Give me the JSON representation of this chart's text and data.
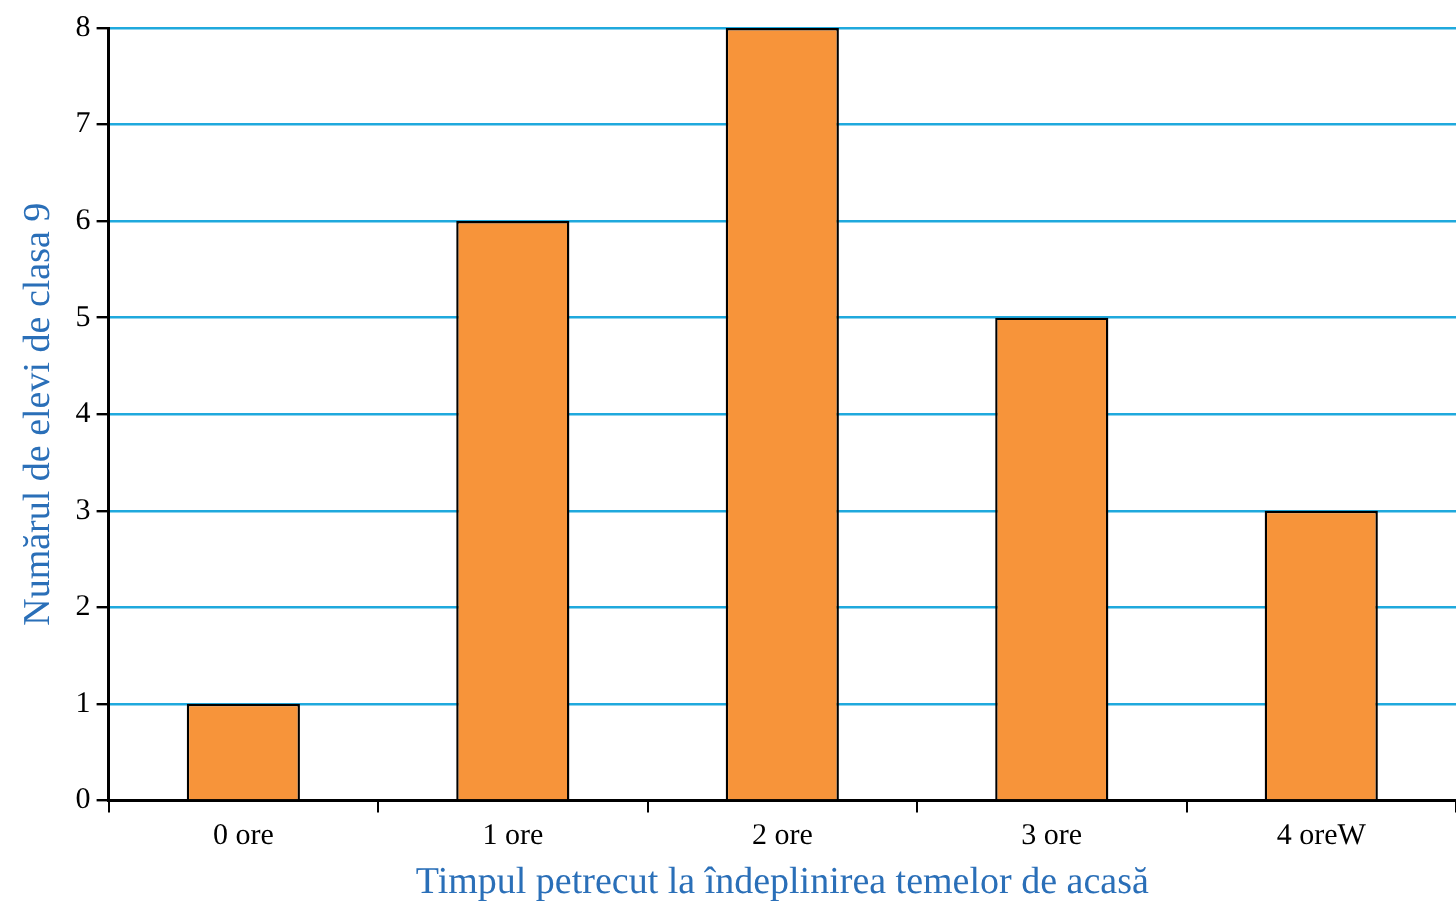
{
  "chart_data": {
    "type": "bar",
    "xlabel": "Timpul petrecut la îndeplinirea temelor de acasă",
    "ylabel": "Numărul de elevi de clasa 9",
    "categories": [
      "0 ore",
      "1 ore",
      "2 ore",
      "3 ore",
      "4 oreW"
    ],
    "values": [
      1,
      6,
      8,
      5,
      3
    ],
    "color": "#f7943a",
    "ylim": [
      0,
      8
    ],
    "yticks": [
      0,
      1,
      2,
      3,
      4,
      5,
      6,
      7,
      8
    ],
    "grid": "y",
    "legend": false
  }
}
